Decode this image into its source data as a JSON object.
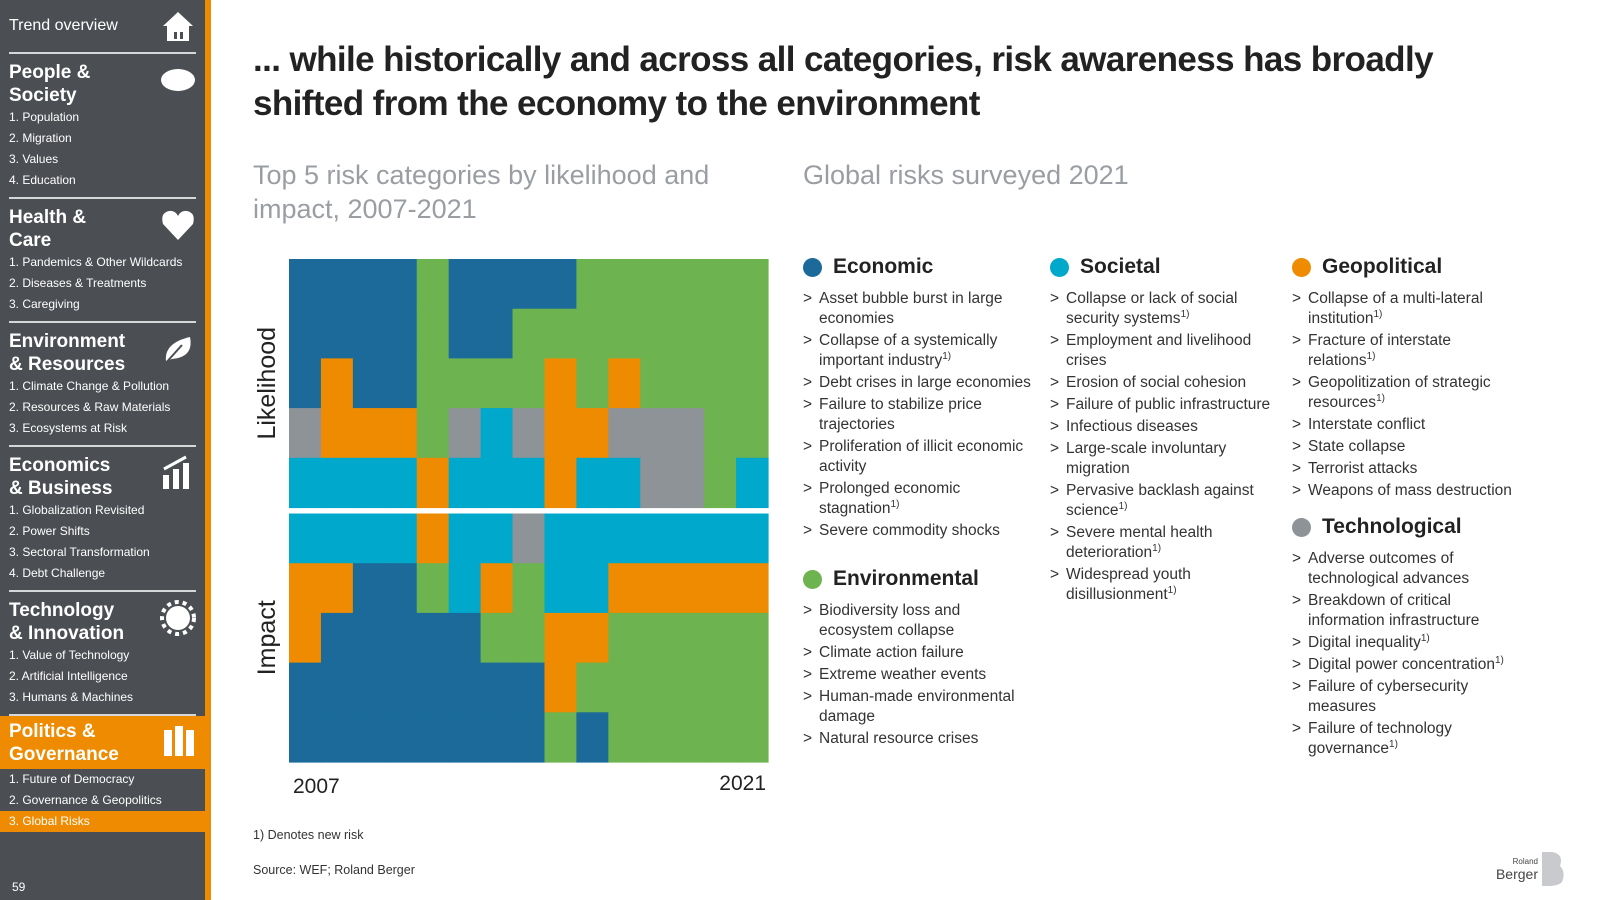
{
  "sidebar": {
    "sections": [
      {
        "title": "Trend overview"
      },
      {
        "title": "People &\nSociety",
        "items": [
          "1. Population",
          "2. Migration",
          "3. Values",
          "4. Education"
        ]
      },
      {
        "title": "Health &\nCare",
        "items": [
          "1. Pandemics & Other Wildcards",
          "2. Diseases & Treatments",
          "3. Caregiving"
        ]
      },
      {
        "title": "Environment\n& Resources",
        "items": [
          "1. Climate Change & Pollution",
          "2. Resources & Raw Materials",
          "3. Ecosystems at Risk"
        ]
      },
      {
        "title": "Economics\n& Business",
        "items": [
          "1. Globalization Revisited",
          "2. Power Shifts",
          "3. Sectoral Transformation",
          "4. Debt Challenge"
        ]
      },
      {
        "title": "Technology\n& Innovation",
        "items": [
          "1. Value of Technology",
          "2. Artificial Intelligence",
          "3. Humans & Machines"
        ]
      },
      {
        "title": "Politics &\nGovernance",
        "active": true,
        "active_item": 2,
        "items": [
          "1. Future of Democracy",
          "2. Governance & Geopolitics",
          "3. Global Risks"
        ]
      }
    ],
    "page_number": "59"
  },
  "header": {
    "title": "... while historically and across all categories, risk awareness has broadly shifted from the economy to the environment"
  },
  "chart": {
    "subtitle": "Top 5 risk categories by likelihood and impact, 2007-2021",
    "start_label": "2007",
    "end_label": "2021",
    "panels": [
      {
        "label": "Likelihood",
        "rows": [
          [
            "Economic",
            "Economic",
            "Economic",
            "Economic",
            "Environmental",
            "Economic",
            "Economic",
            "Economic",
            "Economic",
            "Environmental",
            "Environmental",
            "Environmental",
            "Environmental",
            "Environmental",
            "Environmental"
          ],
          [
            "Economic",
            "Economic",
            "Economic",
            "Economic",
            "Environmental",
            "Economic",
            "Economic",
            "Environmental",
            "Environmental",
            "Environmental",
            "Environmental",
            "Environmental",
            "Environmental",
            "Environmental",
            "Environmental"
          ],
          [
            "Economic",
            "Geopolitical",
            "Economic",
            "Economic",
            "Environmental",
            "Environmental",
            "Environmental",
            "Environmental",
            "Geopolitical",
            "Environmental",
            "Geopolitical",
            "Environmental",
            "Environmental",
            "Environmental",
            "Environmental"
          ],
          [
            "Technological",
            "Geopolitical",
            "Geopolitical",
            "Geopolitical",
            "Environmental",
            "Technological",
            "Societal",
            "Technological",
            "Geopolitical",
            "Geopolitical",
            "Technological",
            "Technological",
            "Technological",
            "Environmental",
            "Environmental"
          ],
          [
            "Societal",
            "Societal",
            "Societal",
            "Societal",
            "Geopolitical",
            "Societal",
            "Societal",
            "Societal",
            "Geopolitical",
            "Societal",
            "Societal",
            "Technological",
            "Technological",
            "Environmental",
            "Societal"
          ]
        ]
      },
      {
        "label": "Impact",
        "rows": [
          [
            "Societal",
            "Societal",
            "Societal",
            "Societal",
            "Geopolitical",
            "Societal",
            "Societal",
            "Technological",
            "Societal",
            "Societal",
            "Societal",
            "Societal",
            "Societal",
            "Societal",
            "Societal"
          ],
          [
            "Geopolitical",
            "Geopolitical",
            "Economic",
            "Economic",
            "Environmental",
            "Societal",
            "Geopolitical",
            "Environmental",
            "Societal",
            "Societal",
            "Geopolitical",
            "Geopolitical",
            "Geopolitical",
            "Geopolitical",
            "Geopolitical"
          ],
          [
            "Geopolitical",
            "Economic",
            "Economic",
            "Economic",
            "Economic",
            "Economic",
            "Environmental",
            "Environmental",
            "Geopolitical",
            "Geopolitical",
            "Environmental",
            "Environmental",
            "Environmental",
            "Environmental",
            "Environmental"
          ],
          [
            "Economic",
            "Economic",
            "Economic",
            "Economic",
            "Economic",
            "Economic",
            "Economic",
            "Economic",
            "Geopolitical",
            "Environmental",
            "Environmental",
            "Environmental",
            "Environmental",
            "Environmental",
            "Environmental"
          ],
          [
            "Economic",
            "Economic",
            "Economic",
            "Economic",
            "Economic",
            "Economic",
            "Economic",
            "Economic",
            "Environmental",
            "Economic",
            "Environmental",
            "Environmental",
            "Environmental",
            "Environmental",
            "Environmental"
          ]
        ]
      }
    ]
  },
  "legend": {
    "subtitle": "Global risks surveyed 2021",
    "list_marker": ">",
    "note_mark": "1)",
    "categories": [
      {
        "name": "Economic",
        "color": "#1b6a9a",
        "items": [
          {
            "text": "Asset bubble burst in large economies"
          },
          {
            "text": "Collapse of a systemically important industry",
            "new": true
          },
          {
            "text": "Debt crises in large economies"
          },
          {
            "text": "Failure to stabilize price trajectories"
          },
          {
            "text": "Proliferation of illicit economic activity"
          },
          {
            "text": "Prolonged economic stagnation",
            "new": true
          },
          {
            "text": "Severe commodity shocks"
          }
        ]
      },
      {
        "name": "Environmental",
        "color": "#6db34f",
        "items": [
          {
            "text": "Biodiversity loss and ecosystem collapse"
          },
          {
            "text": "Climate action failure"
          },
          {
            "text": "Extreme weather events"
          },
          {
            "text": "Human-made environmental damage"
          },
          {
            "text": "Natural resource crises"
          }
        ]
      },
      {
        "name": "Societal",
        "color": "#00a8cc",
        "items": [
          {
            "text": "Collapse or lack of social security systems",
            "new": true
          },
          {
            "text": "Employment and livelihood crises"
          },
          {
            "text": "Erosion of social cohesion"
          },
          {
            "text": "Failure of public infrastructure"
          },
          {
            "text": "Infectious diseases"
          },
          {
            "text": "Large-scale involuntary migration"
          },
          {
            "text": "Pervasive backlash against science",
            "new": true
          },
          {
            "text": "Severe mental health deterioration",
            "new": true
          },
          {
            "text": "Widespread youth disillusionment",
            "new": true
          }
        ]
      },
      {
        "name": "Geopolitical",
        "color": "#ef8b00",
        "items": [
          {
            "text": "Collapse of a multi-lateral institution",
            "new": true
          },
          {
            "text": "Fracture of interstate relations",
            "new": true
          },
          {
            "text": "Geopolitization of strategic resources",
            "new": true
          },
          {
            "text": "Interstate conflict"
          },
          {
            "text": "State collapse"
          },
          {
            "text": "Terrorist attacks"
          },
          {
            "text": "Weapons of mass destruction"
          }
        ]
      },
      {
        "name": "Technological",
        "color": "#8e9398",
        "items": [
          {
            "text": "Adverse outcomes of technological advances"
          },
          {
            "text": "Breakdown of critical information infrastructure"
          },
          {
            "text": "Digital inequality",
            "new": true
          },
          {
            "text": "Digital power concentration",
            "new": true
          },
          {
            "text": "Failure of cybersecurity measures"
          },
          {
            "text": "Failure of technology governance",
            "new": true
          }
        ]
      }
    ]
  },
  "footnote": "1) Denotes new risk",
  "source": "Source: WEF; Roland Berger",
  "logo": {
    "top": "Roland",
    "bottom": "Berger"
  }
}
